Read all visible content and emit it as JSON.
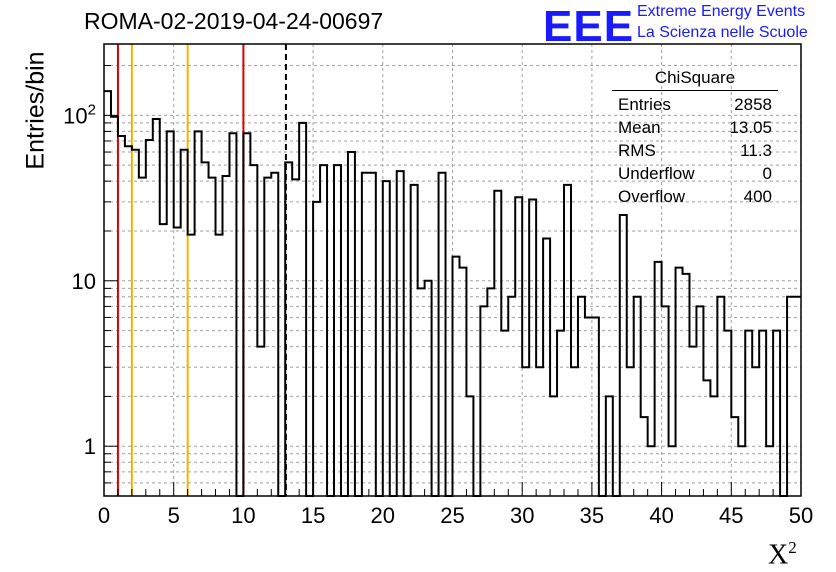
{
  "header": {
    "title": "ROMA-02-2019-04-24-00697",
    "logo_text": "EEE",
    "tagline1": "Extreme Energy Events",
    "tagline2": "La Scienza nelle Scuole"
  },
  "stats_box": {
    "title": "ChiSquare",
    "rows": [
      {
        "label": "Entries",
        "value": "2858"
      },
      {
        "label": "Mean",
        "value": "13.05"
      },
      {
        "label": "RMS",
        "value": "11.3"
      },
      {
        "label": "Underflow",
        "value": "0"
      },
      {
        "label": "Overflow",
        "value": "400"
      }
    ]
  },
  "colors": {
    "line": "#000000",
    "grid": "#a0a0a0",
    "red": "#dd0000",
    "yellow": "#f0b400",
    "brand": "#1a1aff"
  },
  "chart_data": {
    "type": "bar",
    "histogram": true,
    "ylabel": "Entries/bin",
    "xlabel": "X",
    "xlabel_sup": "2",
    "xlim": [
      0,
      50
    ],
    "ylim": [
      0.5,
      270
    ],
    "yscale": "log",
    "bin_width": 0.5,
    "x_ticks": [
      "0",
      "5",
      "10",
      "15",
      "20",
      "25",
      "30",
      "35",
      "40",
      "45",
      "50"
    ],
    "x_tick_values": [
      0,
      5,
      10,
      15,
      20,
      25,
      30,
      35,
      40,
      45,
      50
    ],
    "y_ticks": [
      "1",
      "10",
      "10^2"
    ],
    "y_tick_values": [
      1,
      10,
      100
    ],
    "grid": true,
    "values": [
      140,
      98,
      75,
      65,
      62,
      42,
      71,
      95,
      22,
      80,
      21,
      62,
      19,
      80,
      52,
      42,
      19,
      43,
      78,
      0,
      78,
      50,
      4,
      42,
      45,
      0,
      52,
      41,
      90,
      0,
      30,
      50,
      0,
      50,
      0,
      60,
      0,
      45,
      45,
      0,
      40,
      0,
      46,
      0,
      38,
      9,
      10,
      0,
      45,
      0,
      14,
      12,
      2,
      0,
      7,
      9,
      35,
      5,
      8,
      32,
      3,
      31,
      3,
      18,
      2,
      5,
      38,
      3,
      8,
      6,
      6,
      0,
      2,
      0,
      25,
      3,
      8,
      1.5,
      1,
      13,
      7,
      1,
      12,
      11,
      4,
      7,
      2.5,
      2,
      8,
      5,
      1.5,
      1,
      5,
      3,
      5,
      1,
      5,
      0,
      8,
      8
    ],
    "vertical_lines": [
      {
        "x": 1,
        "color": "red",
        "style": "solid"
      },
      {
        "x": 2,
        "color": "yellow",
        "style": "solid"
      },
      {
        "x": 6,
        "color": "yellow",
        "style": "solid"
      },
      {
        "x": 10,
        "color": "red",
        "style": "solid"
      },
      {
        "x": 13.05,
        "color": "black",
        "style": "dashed"
      }
    ]
  }
}
